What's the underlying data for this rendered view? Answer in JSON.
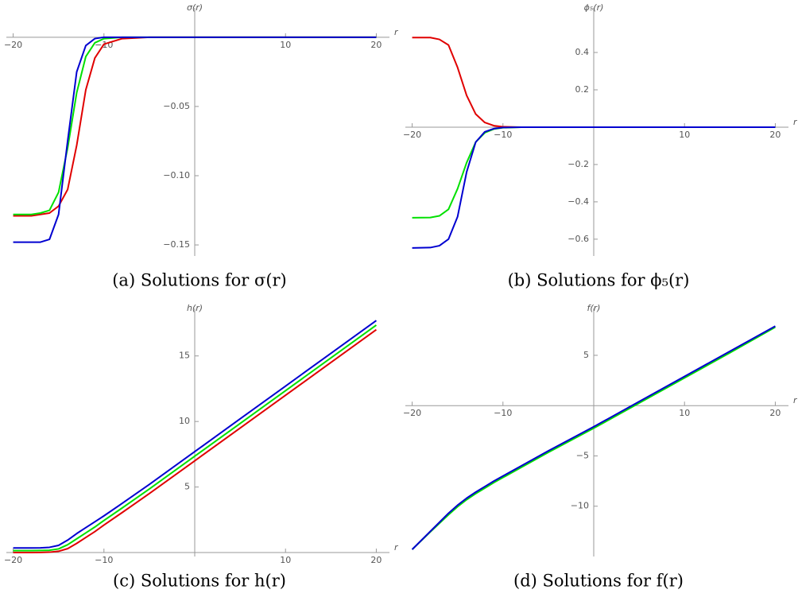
{
  "chart_data": [
    {
      "type": "line",
      "caption": "(a) Solutions for σ(r)",
      "x_label": "r",
      "y_label": "σ(r)",
      "x": [
        -20,
        -18,
        -17,
        -16,
        -15,
        -14,
        -13,
        -12,
        -11,
        -10,
        -8,
        -5,
        0,
        5,
        10,
        15,
        20
      ],
      "xlim": [
        -20.4,
        20.4
      ],
      "ylim": [
        -0.158,
        0.02
      ],
      "xticks": [
        {
          "value": -20,
          "label": "−20"
        },
        {
          "value": -10,
          "label": "−10"
        },
        10,
        20
      ],
      "yticks": [
        {
          "value": -0.15,
          "label": "−0.15"
        },
        {
          "value": -0.1,
          "label": "−0.10"
        },
        {
          "value": -0.05,
          "label": "−0.05"
        }
      ],
      "series": [
        {
          "color": "#e00000",
          "values": [
            -0.129,
            -0.129,
            -0.128,
            -0.127,
            -0.122,
            -0.11,
            -0.078,
            -0.038,
            -0.015,
            -0.005,
            -0.001,
            0,
            0,
            0,
            0,
            0,
            0
          ]
        },
        {
          "color": "#00e000",
          "values": [
            -0.128,
            -0.128,
            -0.127,
            -0.125,
            -0.112,
            -0.08,
            -0.04,
            -0.014,
            -0.004,
            -0.001,
            0,
            0,
            0,
            0,
            0,
            0,
            0
          ]
        },
        {
          "color": "#0000d0",
          "values": [
            -0.148,
            -0.148,
            -0.148,
            -0.146,
            -0.128,
            -0.075,
            -0.025,
            -0.006,
            -0.001,
            0,
            0,
            0,
            0,
            0,
            0,
            0,
            0
          ]
        }
      ]
    },
    {
      "type": "line",
      "caption": "(b) Solutions for ϕ₅(r)",
      "x_label": "r",
      "y_label": "ϕ₅(r)",
      "x": [
        -20,
        -18,
        -17,
        -16,
        -15,
        -14,
        -13,
        -12,
        -11,
        -10,
        -8,
        -5,
        0,
        5,
        10,
        15,
        20
      ],
      "xlim": [
        -20.4,
        20.4
      ],
      "ylim": [
        -0.69,
        0.63
      ],
      "xticks": [
        {
          "value": -20,
          "label": "−20"
        },
        {
          "value": -10,
          "label": "−10"
        },
        10,
        20
      ],
      "yticks": [
        {
          "value": -0.6,
          "label": "−0.6"
        },
        {
          "value": -0.4,
          "label": "−0.4"
        },
        {
          "value": -0.2,
          "label": "−0.2"
        },
        0.2,
        0.4
      ],
      "series": [
        {
          "color": "#e00000",
          "values": [
            0.48,
            0.48,
            0.47,
            0.44,
            0.32,
            0.17,
            0.07,
            0.025,
            0.008,
            0.002,
            0,
            0,
            0,
            0,
            0,
            0,
            0
          ]
        },
        {
          "color": "#00e000",
          "values": [
            -0.485,
            -0.484,
            -0.475,
            -0.44,
            -0.33,
            -0.19,
            -0.08,
            -0.03,
            -0.01,
            -0.003,
            0,
            0,
            0,
            0,
            0,
            0,
            0
          ]
        },
        {
          "color": "#0000d0",
          "values": [
            -0.647,
            -0.645,
            -0.635,
            -0.6,
            -0.48,
            -0.24,
            -0.08,
            -0.025,
            -0.008,
            -0.002,
            0,
            0,
            0,
            0,
            0,
            0,
            0
          ]
        }
      ]
    },
    {
      "type": "line",
      "caption": "(c) Solutions for h(r)",
      "x_label": "r",
      "y_label": "h(r)",
      "x": [
        -20,
        -18,
        -17,
        -16,
        -15,
        -14,
        -13,
        -12,
        -11,
        -10,
        -8,
        -5,
        0,
        5,
        10,
        15,
        20
      ],
      "xlim": [
        -20.4,
        20.4
      ],
      "ylim": [
        -0.3,
        18.5
      ],
      "xticks": [
        {
          "value": -20,
          "label": "−20"
        },
        {
          "value": -10,
          "label": "−10"
        },
        10,
        20
      ],
      "yticks": [
        5,
        10,
        15
      ],
      "series": [
        {
          "color": "#e00000",
          "values": [
            0,
            0,
            0.01,
            0.03,
            0.1,
            0.3,
            0.7,
            1.15,
            1.6,
            2.1,
            3.05,
            4.5,
            7.0,
            9.5,
            12.0,
            14.5,
            17.0
          ]
        },
        {
          "color": "#00e000",
          "values": [
            0.15,
            0.15,
            0.16,
            0.18,
            0.28,
            0.6,
            1.05,
            1.5,
            1.95,
            2.45,
            3.4,
            4.85,
            7.35,
            9.85,
            12.35,
            14.85,
            17.35
          ]
        },
        {
          "color": "#0000d0",
          "values": [
            0.35,
            0.35,
            0.36,
            0.4,
            0.55,
            0.95,
            1.45,
            1.9,
            2.35,
            2.8,
            3.75,
            5.2,
            7.7,
            10.2,
            12.7,
            15.2,
            17.7
          ]
        }
      ]
    },
    {
      "type": "line",
      "caption": "(d) Solutions for f(r)",
      "x_label": "r",
      "y_label": "f(r)",
      "x": [
        -20,
        -18,
        -17,
        -16,
        -15,
        -14,
        -13,
        -12,
        -11,
        -10,
        -8,
        -5,
        0,
        5,
        10,
        15,
        20
      ],
      "xlim": [
        -20.4,
        20.4
      ],
      "ylim": [
        -15,
        9.5
      ],
      "xticks": [
        {
          "value": -20,
          "label": "−20"
        },
        {
          "value": -10,
          "label": "−10"
        },
        10,
        20
      ],
      "yticks": [
        {
          "value": -10,
          "label": "−10"
        },
        {
          "value": -5,
          "label": "−5"
        },
        5
      ],
      "series": [
        {
          "color": "#00e000",
          "values": [
            -14.3,
            -12.55,
            -11.7,
            -10.85,
            -10.05,
            -9.35,
            -8.75,
            -8.2,
            -7.65,
            -7.15,
            -6.15,
            -4.65,
            -2.25,
            0.25,
            2.75,
            5.25,
            7.8
          ]
        },
        {
          "color": "#0000d0",
          "values": [
            -14.3,
            -12.5,
            -11.6,
            -10.7,
            -9.9,
            -9.2,
            -8.6,
            -8.05,
            -7.5,
            -7.0,
            -6.0,
            -4.5,
            -2.1,
            0.4,
            2.9,
            5.4,
            7.9
          ]
        }
      ]
    }
  ]
}
